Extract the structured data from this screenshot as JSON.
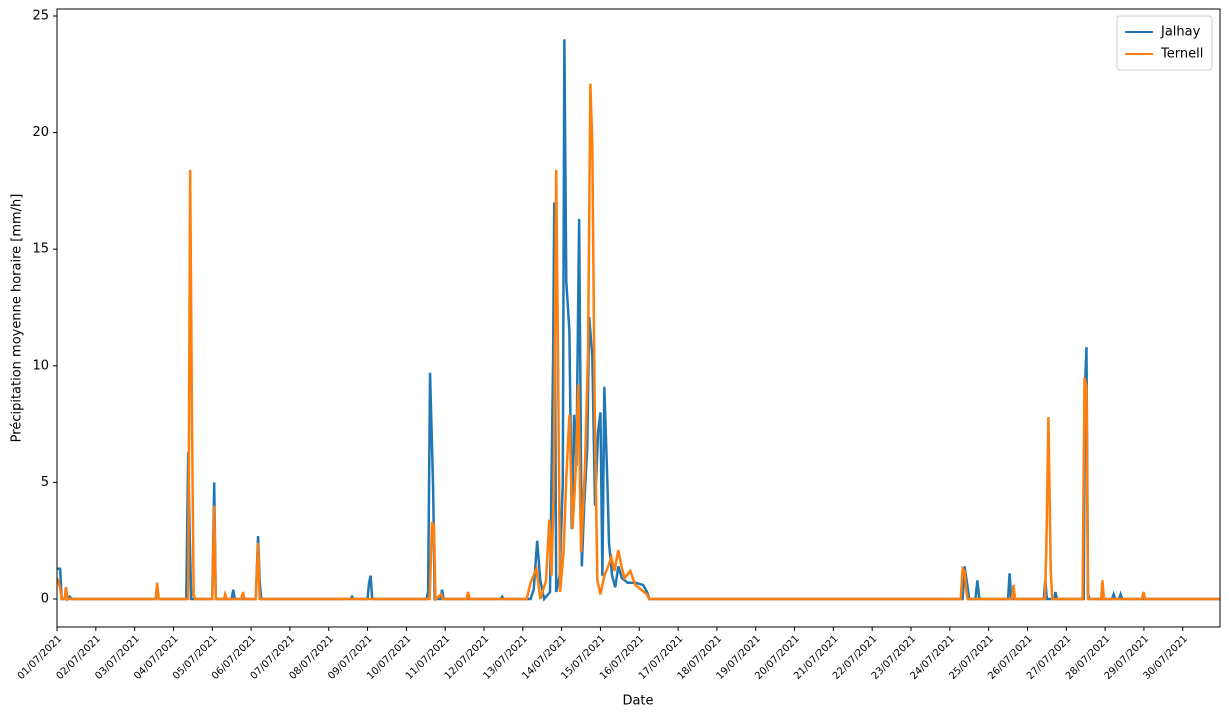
{
  "chart_data": {
    "type": "line",
    "xlabel": "Date",
    "ylabel": "Précipitation moyenne horaire [mm/h]",
    "xlim": [
      0,
      29.96
    ],
    "ylim": [
      -1.2,
      25.3
    ],
    "yticks": [
      0,
      5,
      10,
      15,
      20,
      25
    ],
    "xticks": [
      {
        "value": 0,
        "label": "01/07/2021"
      },
      {
        "value": 1,
        "label": "02/07/2021"
      },
      {
        "value": 2,
        "label": "03/07/2021"
      },
      {
        "value": 3,
        "label": "04/07/2021"
      },
      {
        "value": 4,
        "label": "05/07/2021"
      },
      {
        "value": 5,
        "label": "06/07/2021"
      },
      {
        "value": 6,
        "label": "07/07/2021"
      },
      {
        "value": 7,
        "label": "08/07/2021"
      },
      {
        "value": 8,
        "label": "09/07/2021"
      },
      {
        "value": 9,
        "label": "10/07/2021"
      },
      {
        "value": 10,
        "label": "11/07/2021"
      },
      {
        "value": 11,
        "label": "12/07/2021"
      },
      {
        "value": 12,
        "label": "13/07/2021"
      },
      {
        "value": 13,
        "label": "14/07/2021"
      },
      {
        "value": 14,
        "label": "15/07/2021"
      },
      {
        "value": 15,
        "label": "16/07/2021"
      },
      {
        "value": 16,
        "label": "17/07/2021"
      },
      {
        "value": 17,
        "label": "18/07/2021"
      },
      {
        "value": 18,
        "label": "19/07/2021"
      },
      {
        "value": 19,
        "label": "20/07/2021"
      },
      {
        "value": 20,
        "label": "21/07/2021"
      },
      {
        "value": 21,
        "label": "22/07/2021"
      },
      {
        "value": 22,
        "label": "23/07/2021"
      },
      {
        "value": 23,
        "label": "24/07/2021"
      },
      {
        "value": 24,
        "label": "25/07/2021"
      },
      {
        "value": 25,
        "label": "26/07/2021"
      },
      {
        "value": 26,
        "label": "27/07/2021"
      },
      {
        "value": 27,
        "label": "28/07/2021"
      },
      {
        "value": 28,
        "label": "29/07/2021"
      },
      {
        "value": 29,
        "label": "30/07/2021"
      }
    ],
    "legend": "upper right",
    "series": [
      {
        "name": "Jalhay",
        "color": "#1f77b4",
        "x": [
          0,
          0.08,
          0.12,
          0.2,
          0.23,
          0.27,
          0.33,
          0.37,
          2.54,
          2.58,
          2.62,
          3.33,
          3.38,
          3.42,
          3.46,
          4.0,
          4.05,
          4.09,
          4.5,
          4.54,
          4.58,
          5.12,
          5.18,
          5.22,
          5.26,
          7.56,
          7.6,
          7.64,
          8.0,
          8.04,
          8.08,
          8.12,
          9.52,
          9.56,
          9.61,
          9.69,
          9.73,
          9.88,
          9.92,
          9.96,
          11.43,
          11.47,
          11.51,
          12.2,
          12.28,
          12.37,
          12.45,
          12.55,
          12.7,
          12.78,
          12.81,
          12.86,
          12.95,
          13.03,
          13.07,
          13.12,
          13.2,
          13.26,
          13.32,
          13.38,
          13.45,
          13.52,
          13.58,
          13.66,
          13.71,
          13.79,
          13.86,
          13.94,
          14.0,
          14.05,
          14.1,
          14.18,
          14.22,
          14.3,
          14.38,
          14.46,
          14.55,
          14.7,
          14.9,
          15.1,
          15.2,
          15.26,
          23.33,
          23.38,
          23.45,
          23.5,
          23.66,
          23.71,
          23.76,
          24.5,
          24.54,
          24.58,
          25.42,
          25.46,
          25.5,
          25.7,
          25.72,
          25.76,
          26.45,
          26.48,
          26.52,
          26.56,
          26.6,
          27.18,
          27.22,
          27.26,
          27.36,
          27.4,
          27.44,
          29.96
        ],
        "values": [
          1.3,
          1.3,
          0,
          0,
          0.5,
          0,
          0.1,
          0,
          0,
          0.3,
          0,
          0,
          6.3,
          2.5,
          0,
          0,
          5.0,
          0,
          0,
          0.4,
          0,
          0,
          2.7,
          0.8,
          0,
          0,
          0.1,
          0,
          0,
          0.7,
          1.0,
          0,
          0,
          0.3,
          9.7,
          4.7,
          0,
          0,
          0.4,
          0,
          0,
          0.1,
          0,
          0,
          0.4,
          2.5,
          0.8,
          0,
          0.3,
          10.3,
          17.0,
          0.3,
          1.0,
          5.0,
          24.0,
          13.6,
          11.5,
          3.0,
          7.9,
          5.7,
          16.3,
          1.4,
          4.0,
          6.5,
          12.1,
          10.4,
          4.0,
          7.2,
          8.0,
          1.0,
          9.1,
          4.9,
          2.4,
          1.0,
          0.5,
          1.4,
          0.9,
          0.7,
          0.7,
          0.6,
          0.3,
          0,
          0,
          1.4,
          0.6,
          0,
          0,
          0.8,
          0,
          0,
          1.1,
          0,
          0,
          0.8,
          0,
          0,
          0.3,
          0,
          0,
          9.0,
          10.8,
          0.2,
          0,
          0,
          0.2,
          0,
          0,
          0.2,
          0,
          0
        ]
      },
      {
        "name": "Ternell",
        "color": "#ff7f0e",
        "x": [
          0,
          0.08,
          0.12,
          0.2,
          0.23,
          0.27,
          2.54,
          2.58,
          2.62,
          3.38,
          3.43,
          3.48,
          3.52,
          3.56,
          4.0,
          4.05,
          4.09,
          4.3,
          4.33,
          4.37,
          4.75,
          4.79,
          4.83,
          5.12,
          5.18,
          5.22,
          9.6,
          9.66,
          9.71,
          9.75,
          9.9,
          9.94,
          10.55,
          10.59,
          10.63,
          12.1,
          12.2,
          12.35,
          12.45,
          12.6,
          12.68,
          12.74,
          12.8,
          12.86,
          12.9,
          12.96,
          13.05,
          13.12,
          13.2,
          13.28,
          13.36,
          13.43,
          13.5,
          13.6,
          13.68,
          13.74,
          13.79,
          13.85,
          13.92,
          14.0,
          14.1,
          14.2,
          14.28,
          14.36,
          14.46,
          14.54,
          14.62,
          14.77,
          14.9,
          15.05,
          15.2,
          15.25,
          23.28,
          23.33,
          23.38,
          23.42,
          23.46,
          24.6,
          24.64,
          24.68,
          25.45,
          25.49,
          25.54,
          25.6,
          25.64,
          26.42,
          26.47,
          26.52,
          26.56,
          26.9,
          26.93,
          26.97,
          27.95,
          27.99,
          28.03,
          29.96
        ],
        "values": [
          0.9,
          0.5,
          0,
          0,
          0.5,
          0,
          0,
          0.7,
          0,
          0,
          18.4,
          7.2,
          0.2,
          0,
          0,
          4.0,
          0,
          0,
          0.2,
          0,
          0,
          0.3,
          0,
          0,
          2.4,
          0,
          0,
          3.3,
          3.1,
          0,
          0.2,
          0,
          0,
          0.3,
          0,
          0,
          0.7,
          1.3,
          0,
          0.8,
          3.4,
          1.0,
          5.0,
          18.4,
          11.4,
          0.3,
          2.0,
          5.2,
          7.9,
          3.0,
          5.4,
          9.2,
          2.0,
          5.6,
          10.6,
          22.1,
          19.5,
          8.4,
          0.8,
          0.2,
          1.0,
          1.4,
          1.8,
          1.2,
          2.1,
          1.4,
          0.9,
          1.2,
          0.6,
          0.4,
          0.2,
          0,
          0,
          1.3,
          1.2,
          0.4,
          0,
          0,
          0.6,
          0,
          0,
          2.5,
          7.8,
          1.2,
          0,
          0,
          9.5,
          9.1,
          0,
          0,
          0.8,
          0,
          0,
          0.3,
          0,
          0
        ]
      }
    ]
  }
}
